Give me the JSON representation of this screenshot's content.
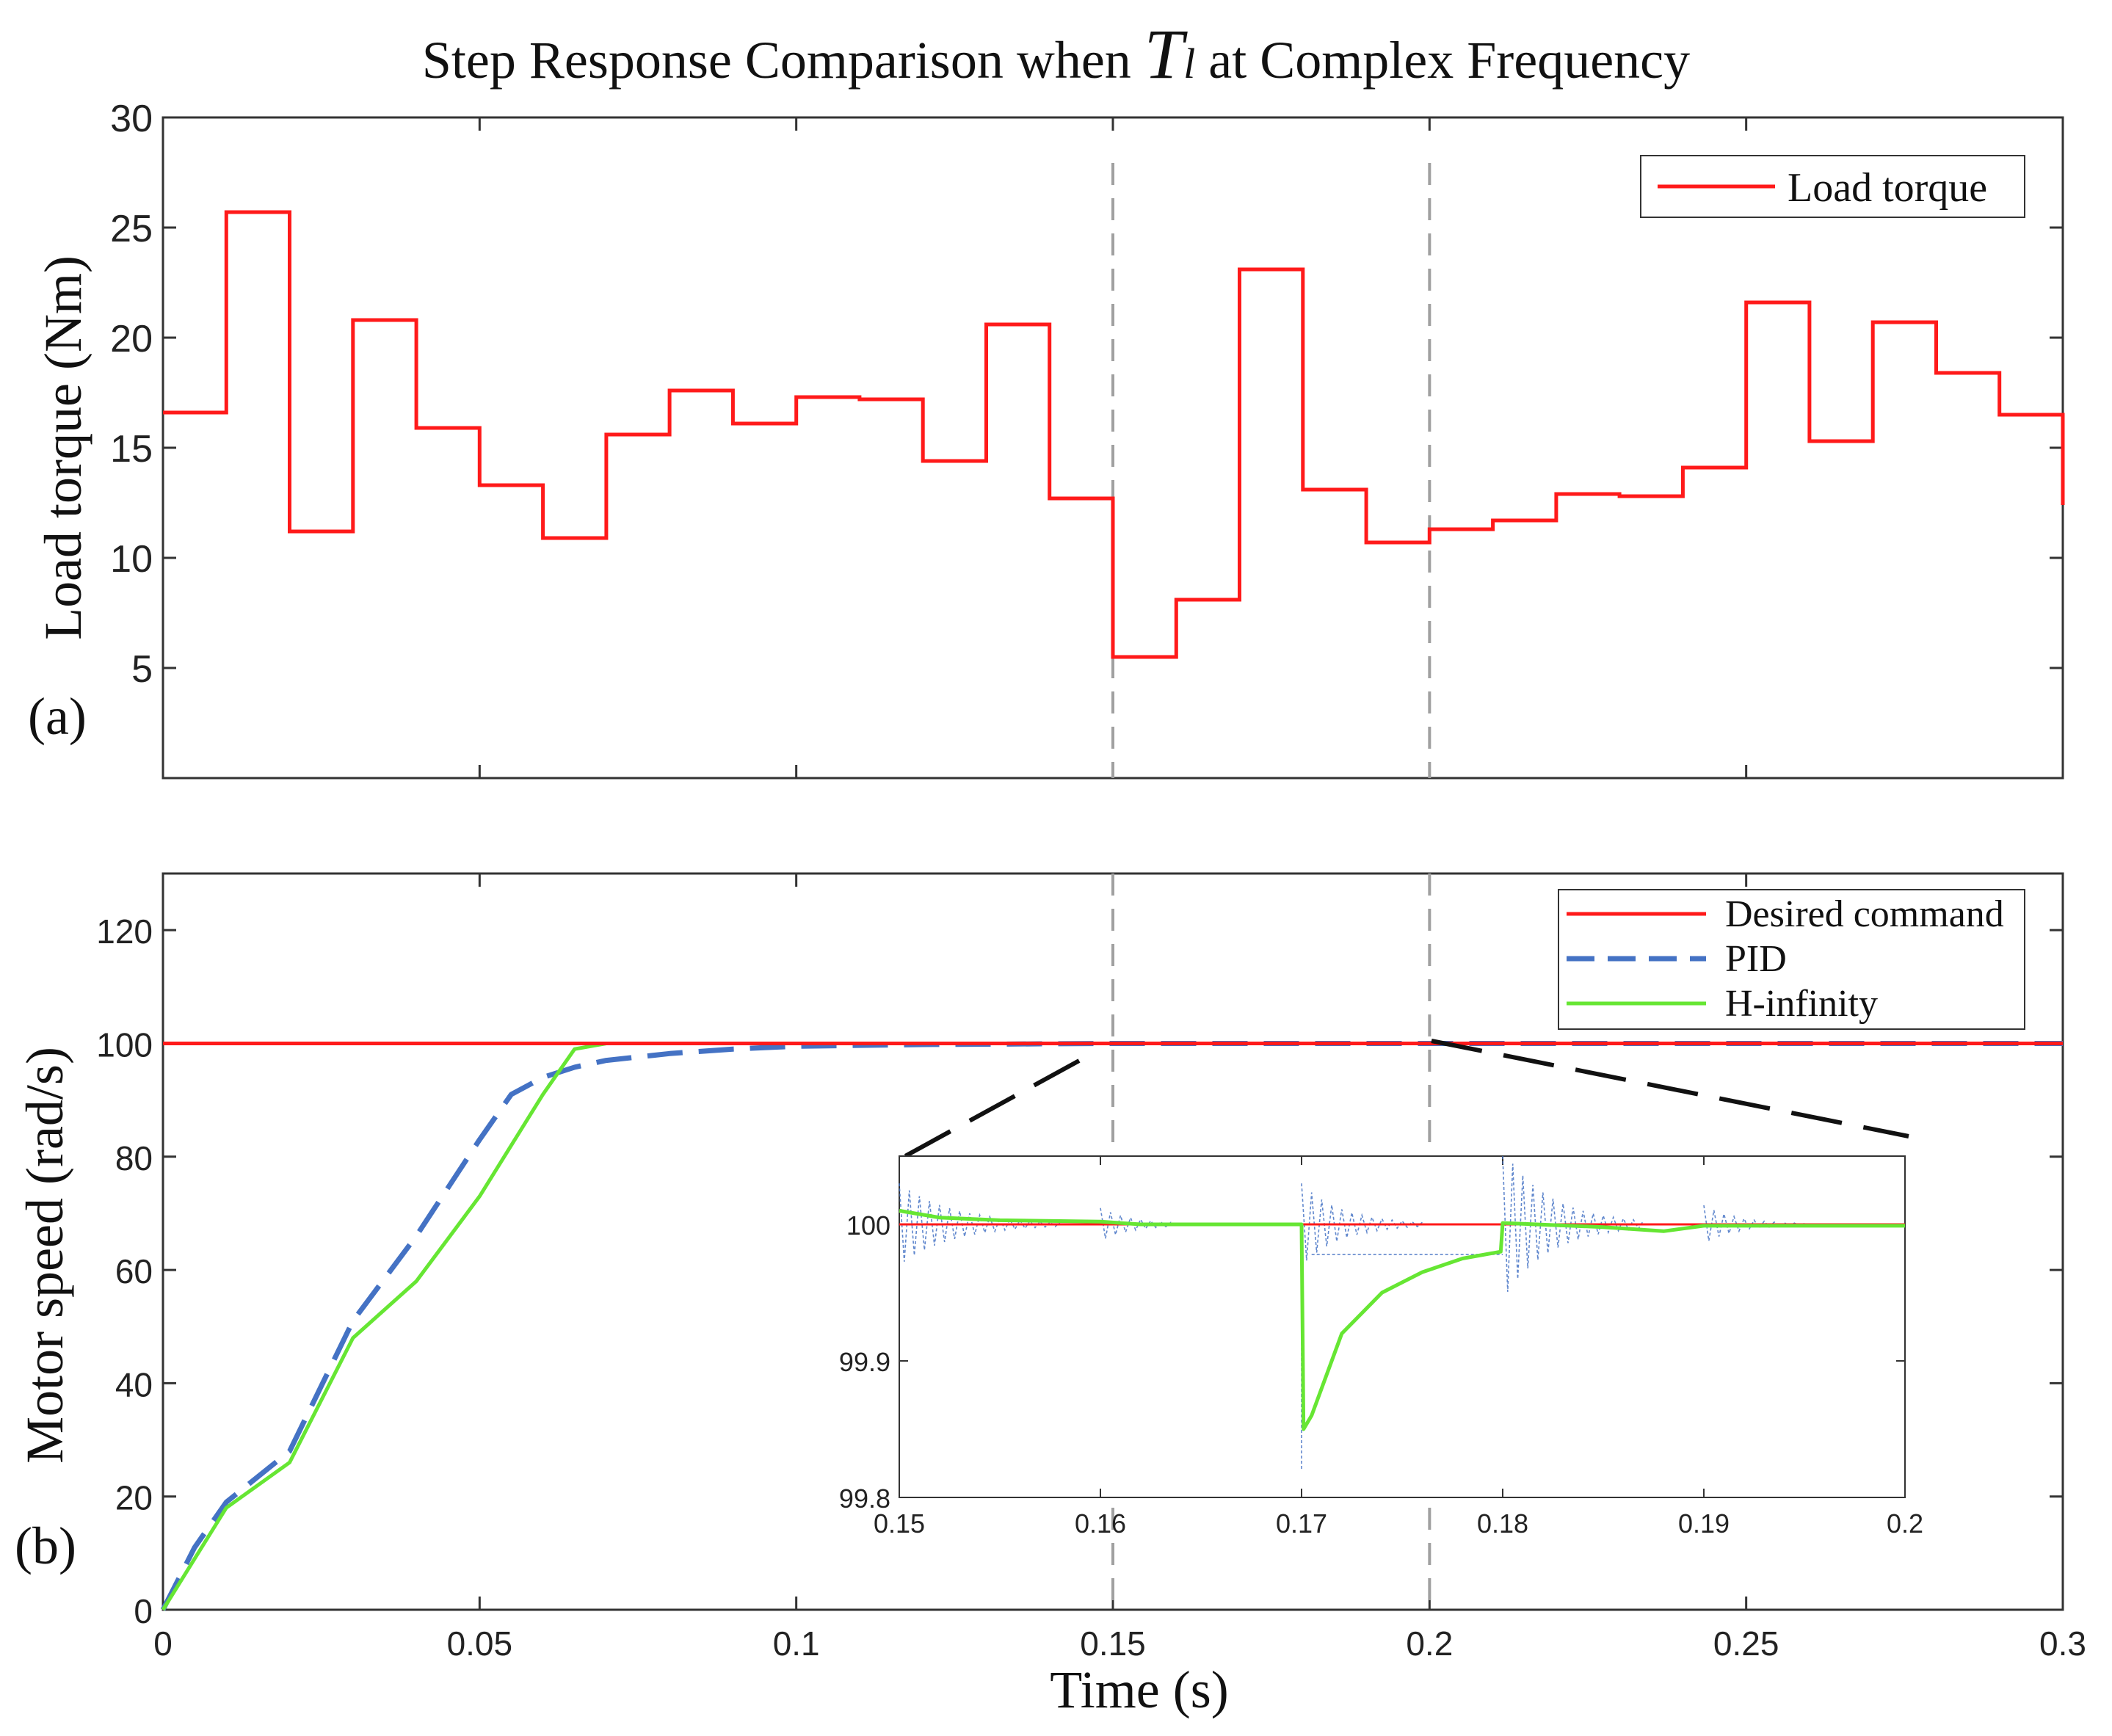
{
  "title": {
    "prefix": "Step Response Comparison when",
    "symbol": "T",
    "subscript": "l",
    "suffix": "at Complex Frequency"
  },
  "colors": {
    "load": "#ff1a1a",
    "desired": "#ff1a1a",
    "pid": "#4472c4",
    "hinf": "#66e633",
    "refline": "#a0a0a0",
    "axis": "#333333"
  },
  "chart_data": [
    {
      "id": "a",
      "type": "line",
      "panel_label": "(a)",
      "xlabel": "",
      "ylabel": "Load torque (Nm)",
      "xlim": [
        0,
        0.3
      ],
      "ylim": [
        0,
        30
      ],
      "yticks": [
        5,
        10,
        15,
        20,
        25,
        30
      ],
      "ytick_labels": [
        "5",
        "10",
        "15",
        "20",
        "25",
        "30"
      ],
      "xticks": [
        0.05,
        0.1,
        0.15,
        0.2,
        0.25
      ],
      "reference_lines_x": [
        0.15,
        0.2
      ],
      "legend": {
        "position": "top-right",
        "entries": [
          "Load torque"
        ]
      },
      "series": [
        {
          "name": "Load torque",
          "style": "step",
          "x": [
            0,
            0.01,
            0.02,
            0.03,
            0.04,
            0.05,
            0.06,
            0.07,
            0.08,
            0.09,
            0.1,
            0.11,
            0.12,
            0.13,
            0.14,
            0.15,
            0.16,
            0.17,
            0.18,
            0.19,
            0.2,
            0.21,
            0.22,
            0.23,
            0.24,
            0.25,
            0.26,
            0.27,
            0.28,
            0.29,
            0.3
          ],
          "values": [
            16.6,
            25.7,
            11.2,
            20.8,
            15.9,
            13.3,
            10.9,
            15.6,
            17.6,
            16.1,
            17.3,
            17.2,
            14.4,
            20.6,
            12.7,
            5.5,
            8.1,
            23.1,
            13.1,
            10.7,
            11.3,
            11.7,
            12.9,
            12.8,
            14.1,
            21.6,
            15.3,
            20.7,
            18.4,
            16.5,
            12.4
          ]
        }
      ]
    },
    {
      "id": "b",
      "type": "line",
      "panel_label": "(b)",
      "xlabel": "Time (s)",
      "ylabel": "Motor speed (rad/s)",
      "xlim": [
        0,
        0.3
      ],
      "ylim": [
        0,
        130
      ],
      "yticks": [
        0,
        20,
        40,
        60,
        80,
        100,
        120
      ],
      "ytick_labels": [
        "0",
        "20",
        "40",
        "60",
        "80",
        "100",
        "120"
      ],
      "xticks": [
        0,
        0.05,
        0.1,
        0.15,
        0.2,
        0.25,
        0.3
      ],
      "xtick_labels": [
        "0",
        "0.05",
        "0.1",
        "0.15",
        "0.2",
        "0.25",
        "0.3"
      ],
      "reference_lines_x": [
        0.15,
        0.2
      ],
      "legend": {
        "position": "top-right",
        "entries": [
          "Desired command",
          "PID",
          "H-infinity"
        ]
      },
      "series": [
        {
          "name": "Desired command",
          "style": "solid",
          "x": [
            0,
            0.3
          ],
          "values": [
            100,
            100
          ]
        },
        {
          "name": "PID",
          "style": "dashed",
          "x": [
            0,
            0.005,
            0.01,
            0.02,
            0.03,
            0.04,
            0.05,
            0.055,
            0.06,
            0.065,
            0.07,
            0.08,
            0.09,
            0.1,
            0.12,
            0.15,
            0.2,
            0.3
          ],
          "values": [
            0,
            11,
            19,
            28,
            51,
            66,
            83,
            91,
            94,
            95.8,
            97,
            98.2,
            99,
            99.5,
            99.8,
            100,
            100,
            100
          ]
        },
        {
          "name": "H-infinity",
          "style": "solid",
          "x": [
            0,
            0.005,
            0.01,
            0.02,
            0.03,
            0.04,
            0.05,
            0.06,
            0.065,
            0.07,
            0.08,
            0.1,
            0.15,
            0.2,
            0.3
          ],
          "values": [
            0,
            9,
            18,
            26,
            48,
            58,
            73,
            91,
            99,
            100,
            100,
            100,
            100,
            100,
            100
          ]
        }
      ]
    },
    {
      "id": "inset",
      "type": "line",
      "xlim": [
        0.15,
        0.2
      ],
      "ylim": [
        99.8,
        100.05
      ],
      "yticks": [
        99.8,
        99.9,
        100
      ],
      "ytick_labels": [
        "99.8",
        "99.9",
        "100"
      ],
      "xticks": [
        0.15,
        0.16,
        0.17,
        0.18,
        0.19,
        0.2
      ],
      "xtick_labels": [
        "0.15",
        "0.16",
        "0.17",
        "0.18",
        "0.19",
        "0.2"
      ],
      "series": [
        {
          "name": "Desired command",
          "style": "solid",
          "x": [
            0.15,
            0.2
          ],
          "values": [
            100,
            100
          ]
        },
        {
          "name": "PID",
          "style": "dotted-oscillation",
          "bursts": [
            {
              "start": 0.15,
              "end": 0.158,
              "center": 100.0,
              "amplitude": 0.03,
              "period": 0.0005
            },
            {
              "start": 0.16,
              "end": 0.165,
              "center": 100.0,
              "amplitude": 0.012,
              "period": 0.0005
            },
            {
              "start": 0.17,
              "end": 0.176,
              "center": 100.0,
              "amplitude": 0.03,
              "period": 0.0005
            },
            {
              "start": 0.18,
              "end": 0.187,
              "center": 100.0,
              "amplitude": 0.055,
              "period": 0.0005
            },
            {
              "start": 0.19,
              "end": 0.195,
              "center": 100.0,
              "amplitude": 0.014,
              "period": 0.0005
            }
          ],
          "dips": [
            {
              "x": 0.17,
              "value": 99.82
            }
          ]
        },
        {
          "name": "H-infinity",
          "style": "solid",
          "x": [
            0.15,
            0.152,
            0.155,
            0.16,
            0.162,
            0.17,
            0.1701,
            0.1705,
            0.172,
            0.174,
            0.176,
            0.178,
            0.1799,
            0.18,
            0.185,
            0.188,
            0.19,
            0.2
          ],
          "values": [
            100.01,
            100.005,
            100.003,
            100.002,
            100.0,
            100.0,
            99.85,
            99.86,
            99.92,
            99.95,
            99.965,
            99.975,
            99.98,
            100.001,
            99.998,
            99.995,
            99.999,
            99.999
          ]
        }
      ]
    }
  ]
}
